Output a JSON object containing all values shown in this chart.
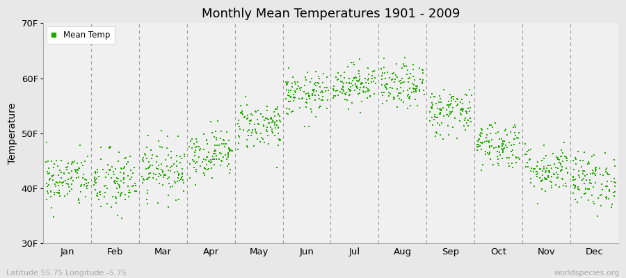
{
  "title": "Monthly Mean Temperatures 1901 - 2009",
  "ylabel": "Temperature",
  "xlabel": "",
  "ylim_low": 30,
  "ylim_high": 70,
  "yticks": [
    30,
    40,
    50,
    60,
    70
  ],
  "ytick_labels": [
    "30F",
    "40F",
    "50F",
    "60F",
    "70F"
  ],
  "months": [
    "Jan",
    "Feb",
    "Mar",
    "Apr",
    "May",
    "Jun",
    "Jul",
    "Aug",
    "Sep",
    "Oct",
    "Nov",
    "Dec"
  ],
  "point_color": "#22aa00",
  "outer_bg_color": "#e8e8e8",
  "plot_bg_color": "#f0f0f0",
  "legend_label": "Mean Temp",
  "footer_left": "Latitude 55.75 Longitude -5.75",
  "footer_right": "worldspecies.org",
  "years": 109,
  "seed": 42,
  "monthly_means_f": [
    41.5,
    41.0,
    43.5,
    46.5,
    51.5,
    57.0,
    59.0,
    58.5,
    54.0,
    48.0,
    43.5,
    41.5
  ],
  "monthly_stds_f": [
    2.5,
    3.0,
    2.5,
    2.2,
    2.2,
    2.0,
    1.8,
    2.0,
    2.2,
    2.2,
    2.2,
    2.5
  ]
}
